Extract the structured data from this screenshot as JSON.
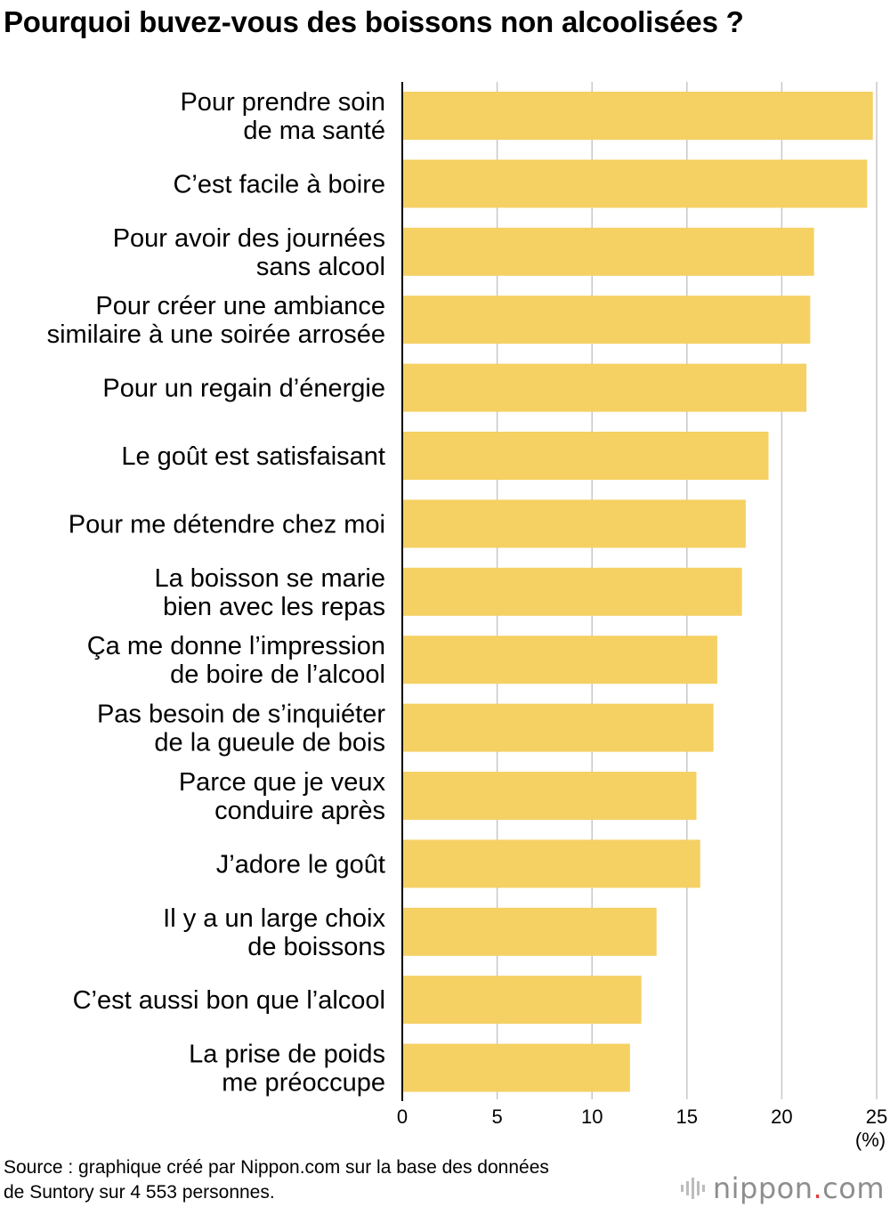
{
  "title": "Pourquoi buvez-vous des boissons non alcoolisées ?",
  "source_lines": [
    "Source : graphique créé par Nippon.com sur la base des données",
    "de Suntory sur 4 553 personnes."
  ],
  "logo": {
    "name": "nippon",
    "dot": ".",
    "suffix": "com"
  },
  "colors": {
    "bar": "#f5d063",
    "grid": "#c8c8c8",
    "axis": "#000000",
    "logo_text": "#8e8e8e",
    "logo_dot": "#e04040"
  },
  "chart_data": {
    "type": "bar",
    "orientation": "horizontal",
    "title": "Pourquoi buvez-vous des boissons non alcoolisées ?",
    "unit": "(%)",
    "xlim": [
      0,
      25
    ],
    "xticks": [
      0,
      5,
      10,
      15,
      20,
      25
    ],
    "grid": true,
    "categories": [
      [
        "Pour prendre soin",
        "de ma santé"
      ],
      [
        "C’est facile à boire"
      ],
      [
        "Pour avoir des journées",
        "sans alcool"
      ],
      [
        "Pour créer une ambiance",
        "similaire à une soirée arrosée"
      ],
      [
        "Pour un regain d’énergie"
      ],
      [
        "Le goût est satisfaisant"
      ],
      [
        "Pour me détendre chez moi"
      ],
      [
        "La boisson se marie",
        "bien avec les repas"
      ],
      [
        "Ça me donne l’impression",
        "de boire de l’alcool"
      ],
      [
        "Pas besoin de s’inquiéter",
        "de la gueule de bois"
      ],
      [
        "Parce que je veux",
        "conduire après"
      ],
      [
        "J’adore le goût"
      ],
      [
        "Il y a un large choix",
        "de boissons"
      ],
      [
        "C’est aussi bon que l’alcool"
      ],
      [
        "La prise de poids",
        "me préoccupe"
      ]
    ],
    "values": [
      24.8,
      24.5,
      21.7,
      21.5,
      21.3,
      19.3,
      18.1,
      17.9,
      16.6,
      16.4,
      15.5,
      15.7,
      13.4,
      12.6,
      12.0
    ]
  }
}
